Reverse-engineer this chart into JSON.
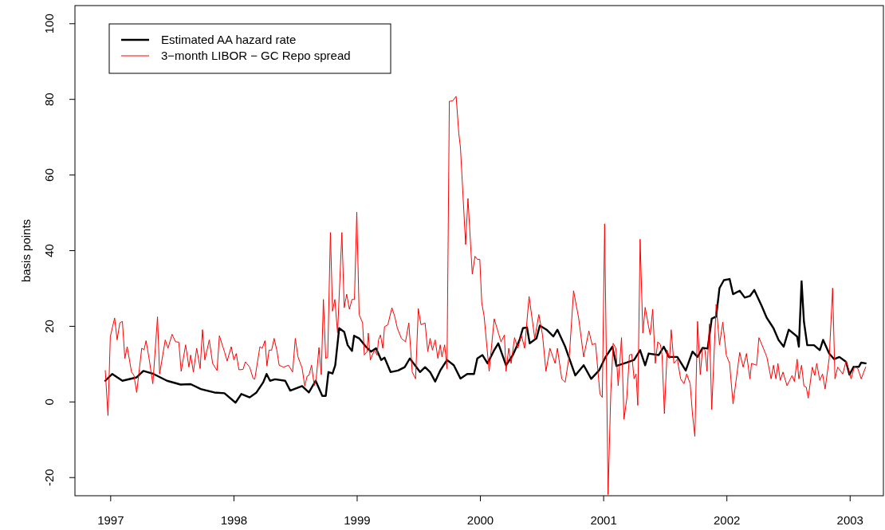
{
  "chart_data": {
    "type": "line",
    "ylabel": "basis points",
    "xlim": [
      1996.71,
      2003.27
    ],
    "ylim": [
      -24.8,
      104.8
    ],
    "xticks": [
      1997,
      1998,
      1999,
      2000,
      2001,
      2002,
      2003
    ],
    "yticks": [
      -20,
      0,
      20,
      40,
      60,
      80,
      100
    ],
    "legend": "top left",
    "grid": false,
    "marker": "none",
    "line_style": "solid",
    "series": [
      {
        "name": "Estimated AA hazard rate",
        "color": "#000000",
        "x": [
          1996.956,
          1997.013,
          1997.095,
          1997.211,
          1997.265,
          1997.348,
          1997.457,
          1997.567,
          1997.649,
          1997.731,
          1997.841,
          1997.923,
          1998.013,
          1998.06,
          1998.128,
          1998.183,
          1998.238,
          1998.265,
          1998.293,
          1998.334,
          1998.416,
          1998.457,
          1998.553,
          1998.608,
          1998.663,
          1998.717,
          1998.745,
          1998.767,
          1998.8,
          1998.822,
          1998.854,
          1998.895,
          1998.923,
          1998.958,
          1998.975,
          1999.016,
          1999.071,
          1999.112,
          1999.153,
          1999.195,
          1999.222,
          1999.271,
          1999.332,
          1999.386,
          1999.427,
          1999.469,
          1999.51,
          1999.551,
          1999.592,
          1999.633,
          1999.674,
          1999.729,
          1999.784,
          1999.838,
          1999.893,
          1999.948,
          1999.975,
          2000.016,
          2000.058,
          2000.112,
          2000.145,
          2000.208,
          2000.263,
          2000.318,
          2000.345,
          2000.378,
          2000.4,
          2000.455,
          2000.482,
          2000.537,
          2000.592,
          2000.625,
          2000.688,
          2000.77,
          2000.838,
          2000.899,
          2000.962,
          2001.016,
          2001.071,
          2001.104,
          2001.187,
          2001.247,
          2001.296,
          2001.337,
          2001.365,
          2001.447,
          2001.488,
          2001.529,
          2001.598,
          2001.666,
          2001.721,
          2001.762,
          2001.803,
          2001.844,
          2001.877,
          2001.913,
          2001.94,
          2001.976,
          2002.022,
          2002.05,
          2002.104,
          2002.145,
          2002.187,
          2002.222,
          2002.282,
          2002.324,
          2002.378,
          2002.419,
          2002.461,
          2002.502,
          2002.57,
          2002.584,
          2002.606,
          2002.625,
          2002.652,
          2002.707,
          2002.754,
          2002.781,
          2002.83,
          2002.871,
          2002.913,
          2002.967,
          2002.995,
          2003.028,
          2003.071,
          2003.09,
          2003.126
        ],
        "values": [
          5.6,
          7.4,
          5.6,
          6.5,
          8.2,
          7.4,
          5.6,
          4.6,
          4.7,
          3.4,
          2.5,
          2.3,
          -0.2,
          2.1,
          1.2,
          2.5,
          5.2,
          7.4,
          5.6,
          6.0,
          5.6,
          3.0,
          4.2,
          2.5,
          5.6,
          1.6,
          1.6,
          7.9,
          7.5,
          9.7,
          19.5,
          18.5,
          15.0,
          13.5,
          17.5,
          16.8,
          14.6,
          13.3,
          14.2,
          11.1,
          11.7,
          7.9,
          8.3,
          9.2,
          11.5,
          9.7,
          7.9,
          9.2,
          7.9,
          5.4,
          8.3,
          11.1,
          9.7,
          6.2,
          7.4,
          7.4,
          11.5,
          12.4,
          10.2,
          13.7,
          15.5,
          9.7,
          12.4,
          16.4,
          19.5,
          19.7,
          15.5,
          16.8,
          20.2,
          19.1,
          17.3,
          19.1,
          14.6,
          7.0,
          9.7,
          6.1,
          8.3,
          11.9,
          14.6,
          9.5,
          10.4,
          11.1,
          13.7,
          9.7,
          12.8,
          12.4,
          14.6,
          11.9,
          11.9,
          8.3,
          13.3,
          11.9,
          14.3,
          14.1,
          22.0,
          22.6,
          30.1,
          32.2,
          32.5,
          28.5,
          29.4,
          27.6,
          28.0,
          29.6,
          25.4,
          22.2,
          19.5,
          16.4,
          14.6,
          19.1,
          17.3,
          14.6,
          31.9,
          21.3,
          15.0,
          15.0,
          13.7,
          16.4,
          12.8,
          11.3,
          11.9,
          10.6,
          7.2,
          9.3,
          9.3,
          10.4,
          10.2
        ]
      },
      {
        "name": "3−month LIBOR − GC Repo spread",
        "color": "#ff0000",
        "x": [
          1996.956,
          1996.978,
          1996.997,
          1997.032,
          1997.052,
          1997.074,
          1997.095,
          1997.115,
          1997.134,
          1997.169,
          1997.189,
          1997.211,
          1997.252,
          1997.271,
          1997.287,
          1997.315,
          1997.342,
          1997.38,
          1997.397,
          1997.443,
          1997.465,
          1997.498,
          1997.526,
          1997.553,
          1997.572,
          1997.608,
          1997.635,
          1997.649,
          1997.671,
          1997.698,
          1997.726,
          1997.745,
          1997.764,
          1997.8,
          1997.827,
          1997.863,
          1997.882,
          1997.923,
          1997.945,
          1997.978,
          1998.0,
          1998.019,
          1998.041,
          1998.074,
          1998.093,
          1998.128,
          1998.156,
          1998.169,
          1998.211,
          1998.23,
          1998.252,
          1998.268,
          1998.285,
          1998.306,
          1998.326,
          1998.348,
          1998.367,
          1998.402,
          1998.443,
          1998.476,
          1998.498,
          1998.52,
          1998.553,
          1998.575,
          1998.594,
          1998.608,
          1998.63,
          1998.652,
          1998.668,
          1998.69,
          1998.709,
          1998.726,
          1998.745,
          1998.761,
          1998.783,
          1998.8,
          1998.819,
          1998.841,
          1998.876,
          1998.895,
          1998.915,
          1998.937,
          1998.958,
          1998.978,
          1998.997,
          1999.016,
          1999.044,
          1999.058,
          1999.08,
          1999.09,
          1999.107,
          1999.14,
          1999.162,
          1999.173,
          1999.189,
          1999.208,
          1999.222,
          1999.249,
          1999.282,
          1999.304,
          1999.326,
          1999.359,
          1999.392,
          1999.419,
          1999.447,
          1999.474,
          1999.496,
          1999.518,
          1999.551,
          1999.573,
          1999.592,
          1999.611,
          1999.633,
          1999.655,
          1999.674,
          1999.688,
          1999.71,
          1999.729,
          1999.748,
          1999.775,
          1999.803,
          1999.825,
          1999.838,
          1999.88,
          1999.899,
          1999.934,
          1999.956,
          1999.975,
          1999.995,
          2000.011,
          2000.03,
          2000.071,
          2000.112,
          2000.167,
          2000.195,
          2000.208,
          2000.23,
          2000.249,
          2000.277,
          2000.304,
          2000.332,
          2000.359,
          2000.395,
          2000.441,
          2000.474,
          2000.504,
          2000.532,
          2000.564,
          2000.606,
          2000.625,
          2000.66,
          2000.688,
          2000.723,
          2000.756,
          2000.797,
          2000.838,
          2000.88,
          2000.907,
          2000.934,
          2000.97,
          2000.989,
          2001.008,
          2001.036,
          2001.058,
          2001.077,
          2001.099,
          2001.118,
          2001.145,
          2001.165,
          2001.187,
          2001.209,
          2001.228,
          2001.247,
          2001.263,
          2001.277,
          2001.296,
          2001.318,
          2001.337,
          2001.365,
          2001.378,
          2001.398,
          2001.419,
          2001.439,
          2001.461,
          2001.474,
          2001.493,
          2001.515,
          2001.535,
          2001.548,
          2001.57,
          2001.598,
          2001.625,
          2001.652,
          2001.674,
          2001.702,
          2001.721,
          2001.74,
          2001.762,
          2001.784,
          2001.803,
          2001.822,
          2001.839,
          2001.858,
          2001.877,
          2001.913,
          2001.94,
          2001.967,
          2001.995,
          2002.022,
          2002.05,
          2002.104,
          2002.132,
          2002.159,
          2002.187,
          2002.2,
          2002.241,
          2002.26,
          2002.296,
          2002.324,
          2002.359,
          2002.378,
          2002.398,
          2002.414,
          2002.433,
          2002.455,
          2002.488,
          2002.529,
          2002.548,
          2002.57,
          2002.584,
          2002.606,
          2002.625,
          2002.644,
          2002.66,
          2002.693,
          2002.713,
          2002.729,
          2002.754,
          2002.776,
          2002.797,
          2002.83,
          2002.858,
          2002.877,
          2002.899,
          2002.94,
          2002.967,
          2003.008,
          2003.036,
          2003.063,
          2003.09,
          2003.126
        ],
        "values": [
          8.3,
          -3.6,
          17.3,
          22.2,
          16.4,
          20.9,
          21.3,
          11.5,
          14.6,
          7.9,
          7.0,
          2.5,
          14.2,
          13.8,
          16.2,
          10.8,
          4.8,
          22.5,
          7.4,
          16.4,
          14.2,
          17.9,
          15.9,
          15.8,
          8.1,
          15.1,
          9.2,
          12.4,
          7.9,
          14.2,
          8.8,
          19.1,
          11.1,
          16.4,
          10.2,
          8.3,
          17.5,
          13.3,
          10.8,
          14.6,
          11.1,
          12.8,
          8.5,
          8.6,
          10.6,
          9.2,
          6.2,
          6.0,
          14.6,
          14.2,
          16.2,
          9.5,
          13.7,
          13.7,
          16.8,
          13.7,
          9.7,
          9.2,
          9.7,
          7.9,
          16.8,
          11.9,
          9.0,
          4.2,
          6.8,
          7.0,
          9.7,
          4.3,
          6.2,
          14.4,
          7.2,
          27.1,
          11.5,
          11.9,
          44.8,
          24.0,
          27.1,
          18.2,
          44.8,
          24.9,
          28.5,
          24.5,
          27.1,
          27.1,
          50.2,
          23.1,
          20.9,
          12.4,
          13.3,
          18.2,
          11.1,
          13.7,
          12.4,
          16.4,
          17.7,
          14.2,
          19.9,
          20.4,
          24.9,
          22.7,
          19.5,
          16.8,
          15.9,
          20.9,
          7.9,
          6.1,
          24.7,
          20.4,
          20.9,
          13.3,
          16.8,
          13.7,
          16.4,
          11.5,
          15.1,
          11.9,
          15.1,
          8.8,
          79.5,
          79.6,
          80.8,
          70.9,
          67.3,
          41.6,
          53.8,
          33.8,
          38.5,
          37.7,
          37.7,
          26.2,
          22.7,
          8.1,
          22.0,
          15.9,
          17.7,
          8.1,
          14.2,
          10.2,
          17.0,
          14.2,
          17.7,
          14.2,
          27.9,
          16.8,
          23.1,
          17.7,
          8.1,
          14.2,
          10.2,
          14.2,
          6.1,
          5.2,
          12.8,
          29.4,
          22.2,
          11.9,
          18.8,
          15.1,
          15.5,
          2.1,
          1.2,
          47.1,
          -24.5,
          2.5,
          15.5,
          14.2,
          4.3,
          17.0,
          -4.6,
          0.7,
          12.4,
          12.6,
          6.1,
          7.4,
          -0.9,
          43.0,
          18.2,
          25.0,
          19.9,
          17.7,
          24.5,
          10.2,
          15.9,
          15.1,
          12.4,
          -3.1,
          13.7,
          11.5,
          19.1,
          10.2,
          11.3,
          6.1,
          4.8,
          7.4,
          4.8,
          -3.3,
          -9.1,
          21.3,
          7.2,
          14.2,
          13.7,
          8.1,
          20.6,
          -2.0,
          25.8,
          15.1,
          21.1,
          12.4,
          10.2,
          -0.5,
          13.1,
          9.2,
          12.8,
          6.1,
          10.2,
          9.7,
          17.0,
          14.2,
          11.9,
          6.1,
          9.7,
          6.1,
          10.2,
          5.7,
          7.9,
          4.3,
          7.0,
          5.4,
          11.3,
          6.1,
          9.7,
          4.2,
          3.9,
          1.0,
          9.2,
          7.0,
          10.2,
          5.7,
          7.4,
          3.4,
          11.5,
          30.1,
          6.1,
          9.2,
          7.4,
          10.8,
          6.1,
          9.5,
          8.8,
          6.1,
          9.2
        ]
      }
    ]
  }
}
